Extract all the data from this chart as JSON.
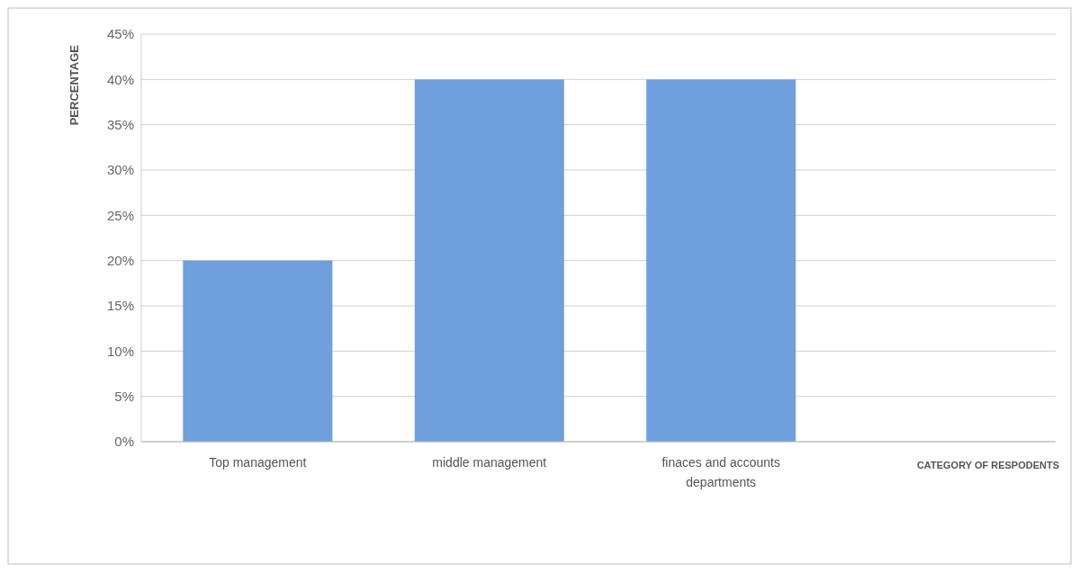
{
  "chart_data": {
    "type": "bar",
    "xlabel": "CATEGORY OF RESPODENTS",
    "ylabel": "PERCENTAGE",
    "categories": [
      "Top management",
      "middle management",
      "finaces and accounts departments",
      null
    ],
    "values": [
      20,
      40,
      40,
      null
    ],
    "color": "#6f9fdc",
    "ylim": [
      0,
      45
    ],
    "yticks": [
      {
        "value": 0,
        "label": "0%"
      },
      {
        "value": 5,
        "label": "5%"
      },
      {
        "value": 10,
        "label": "10%"
      },
      {
        "value": 15,
        "label": "15%"
      },
      {
        "value": 20,
        "label": "20%"
      },
      {
        "value": 25,
        "label": "25%"
      },
      {
        "value": 30,
        "label": "30%"
      },
      {
        "value": 35,
        "label": "35%"
      },
      {
        "value": 40,
        "label": "40%"
      },
      {
        "value": 45,
        "label": "45%"
      }
    ],
    "grid": "y"
  }
}
